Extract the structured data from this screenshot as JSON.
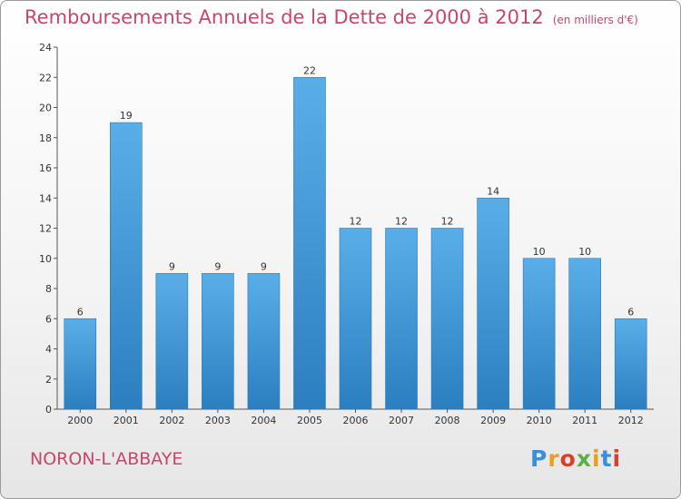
{
  "header": {
    "title": "Remboursements Annuels de la Dette de 2000 à 2012",
    "unit": "(en milliers d'€)"
  },
  "footer": {
    "place": "NORON-L'ABBAYE",
    "logo": "Proxiti"
  },
  "colors": {
    "title": "#c8466b",
    "bar_top": "#5aaee8",
    "bar_bottom": "#2b7fc0"
  },
  "chart_data": {
    "type": "bar",
    "categories": [
      "2000",
      "2001",
      "2002",
      "2003",
      "2004",
      "2005",
      "2006",
      "2007",
      "2008",
      "2009",
      "2010",
      "2011",
      "2012"
    ],
    "values": [
      6,
      19,
      9,
      9,
      9,
      22,
      12,
      12,
      12,
      14,
      10,
      10,
      6
    ],
    "title": "Remboursements Annuels de la Dette de 2000 à 2012",
    "xlabel": "",
    "ylabel": "",
    "ylim": [
      0,
      24
    ],
    "yticks": [
      0,
      2,
      4,
      6,
      8,
      10,
      12,
      14,
      16,
      18,
      20,
      22,
      24
    ],
    "grid": false,
    "legend": "none"
  }
}
